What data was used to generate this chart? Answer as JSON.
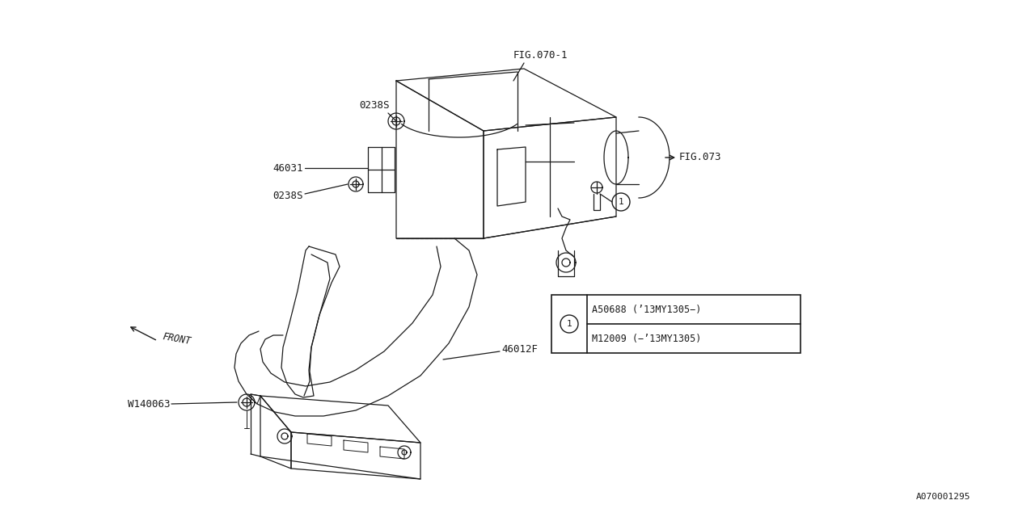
{
  "bg_color": "#ffffff",
  "line_color": "#1a1a1a",
  "fig_width": 12.8,
  "fig_height": 6.4,
  "labels": {
    "fig070_1": "FIG.070-1",
    "fig073": "FIG.073",
    "part_0238S_top": "0238S",
    "part_46031": "46031",
    "part_0238S_bot": "0238S",
    "part_46012F": "46012F",
    "part_W140063": "W140063",
    "front": "FRONT",
    "part_num_1": "A070001295",
    "legend_row1": "M12009 (−’13MY1305)",
    "legend_row2": "A50688 (’13MY1305−)"
  }
}
